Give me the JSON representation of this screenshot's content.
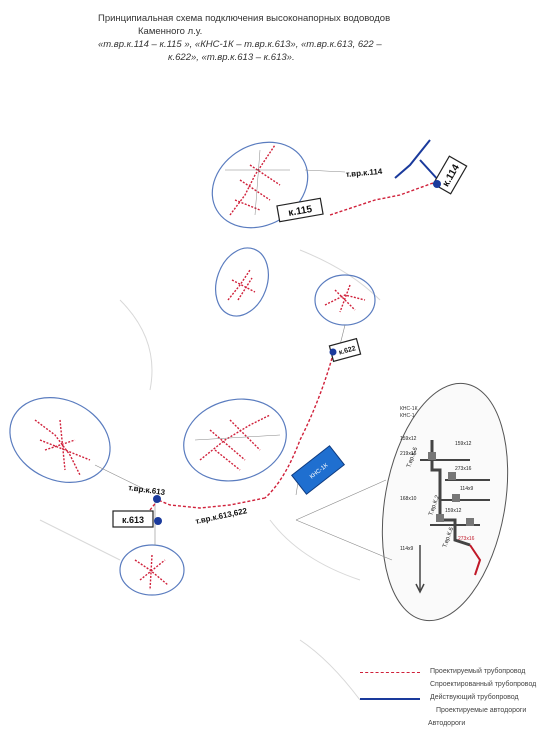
{
  "title": {
    "line1": "Принципиальная схема подключения высоконапорных водоводов",
    "line2": "Каменного л.у.",
    "line3": "«т.вр.к.114 – к.115 », «КНС-1К – т.вр.к.613», «т.вр.к.613, 622 –",
    "line4": "к.622», «т.вр.к.613 – к.613»."
  },
  "nodes": {
    "k114": "к.114",
    "k115": "к.115",
    "k622": "к.622",
    "k613": "к.613",
    "kns": "КНС-1К"
  },
  "labels": {
    "tvr114": "т.вр.к.114",
    "tvr613": "т.вр.к.613",
    "tvr613_622": "т.вр.к.613,622"
  },
  "inset": {
    "header1": "КНС-1К",
    "header2": "КНС-1",
    "pipe1": "Т.вр.К.6",
    "pipe2": "Т.вр.К.2",
    "pipe3": "Т.вр.К.6",
    "d1": "159х12",
    "d2": "159х12",
    "d3": "219х15",
    "d4": "273х16",
    "d5": "168х10",
    "d6": "114х9",
    "d7": "159х12",
    "d8": "114х9",
    "d9": "273х16"
  },
  "legend": {
    "projected_pipe": "Проектируемый трубопровод",
    "designed_pipe": "Спроектированный трубопровод",
    "existing_pipe": "Действующий трубопровод",
    "projected_roads": "Проектируемые автодороги",
    "roads": "Автодороги"
  },
  "colors": {
    "projected": "#d0203a",
    "existing": "#1a3a9c",
    "kns": "#1f6fd0",
    "ellipse": "#5a7cbf"
  }
}
